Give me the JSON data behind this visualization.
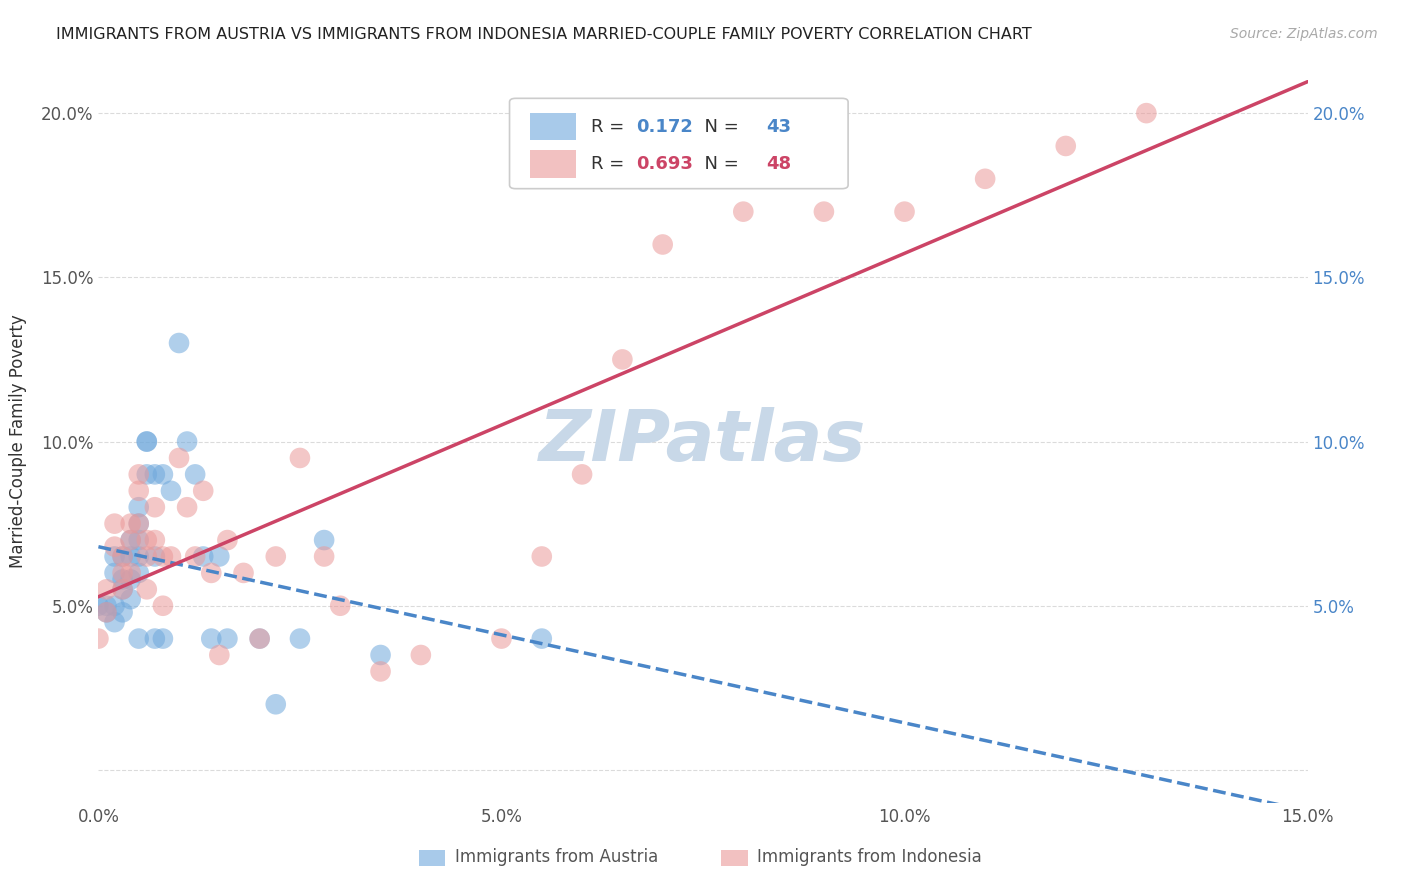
{
  "title": "IMMIGRANTS FROM AUSTRIA VS IMMIGRANTS FROM INDONESIA MARRIED-COUPLE FAMILY POVERTY CORRELATION CHART",
  "source": "Source: ZipAtlas.com",
  "ylabel": "Married-Couple Family Poverty",
  "xlim": [
    0,
    0.15
  ],
  "ylim": [
    -0.01,
    0.21
  ],
  "xticks": [
    0.0,
    0.025,
    0.05,
    0.075,
    0.1,
    0.125,
    0.15
  ],
  "xtick_labels": [
    "0.0%",
    "",
    "5.0%",
    "",
    "10.0%",
    "",
    "15.0%"
  ],
  "ytick_positions": [
    0.0,
    0.05,
    0.1,
    0.15,
    0.2
  ],
  "ytick_labels_left": [
    "",
    "5.0%",
    "10.0%",
    "15.0%",
    "20.0%"
  ],
  "ytick_labels_right": [
    "",
    "5.0%",
    "10.0%",
    "15.0%",
    "20.0%"
  ],
  "austria_R": 0.172,
  "austria_N": 43,
  "indonesia_R": 0.693,
  "indonesia_N": 48,
  "austria_color": "#6fa8dc",
  "indonesia_color": "#ea9999",
  "austria_line_color": "#4a86c8",
  "indonesia_line_color": "#cc4466",
  "watermark": "ZIPatlas",
  "watermark_color": "#c8d8e8",
  "austria_x": [
    0.0,
    0.001,
    0.001,
    0.002,
    0.002,
    0.002,
    0.002,
    0.003,
    0.003,
    0.003,
    0.003,
    0.004,
    0.004,
    0.004,
    0.004,
    0.005,
    0.005,
    0.005,
    0.005,
    0.005,
    0.005,
    0.006,
    0.006,
    0.006,
    0.007,
    0.007,
    0.007,
    0.008,
    0.008,
    0.009,
    0.01,
    0.011,
    0.012,
    0.013,
    0.014,
    0.015,
    0.016,
    0.02,
    0.022,
    0.025,
    0.028,
    0.035,
    0.055
  ],
  "austria_y": [
    0.05,
    0.048,
    0.05,
    0.065,
    0.06,
    0.05,
    0.045,
    0.065,
    0.058,
    0.055,
    0.048,
    0.07,
    0.065,
    0.058,
    0.052,
    0.08,
    0.075,
    0.07,
    0.065,
    0.06,
    0.04,
    0.1,
    0.1,
    0.09,
    0.09,
    0.065,
    0.04,
    0.09,
    0.04,
    0.085,
    0.13,
    0.1,
    0.09,
    0.065,
    0.04,
    0.065,
    0.04,
    0.04,
    0.02,
    0.04,
    0.07,
    0.035,
    0.04
  ],
  "indonesia_x": [
    0.0,
    0.001,
    0.001,
    0.002,
    0.002,
    0.003,
    0.003,
    0.003,
    0.004,
    0.004,
    0.004,
    0.005,
    0.005,
    0.005,
    0.006,
    0.006,
    0.006,
    0.007,
    0.007,
    0.008,
    0.008,
    0.009,
    0.01,
    0.011,
    0.012,
    0.013,
    0.014,
    0.015,
    0.016,
    0.018,
    0.02,
    0.022,
    0.025,
    0.028,
    0.03,
    0.035,
    0.04,
    0.05,
    0.055,
    0.06,
    0.065,
    0.07,
    0.08,
    0.09,
    0.1,
    0.11,
    0.12,
    0.13
  ],
  "indonesia_y": [
    0.04,
    0.055,
    0.048,
    0.075,
    0.068,
    0.065,
    0.06,
    0.055,
    0.075,
    0.07,
    0.06,
    0.09,
    0.085,
    0.075,
    0.07,
    0.065,
    0.055,
    0.08,
    0.07,
    0.065,
    0.05,
    0.065,
    0.095,
    0.08,
    0.065,
    0.085,
    0.06,
    0.035,
    0.07,
    0.06,
    0.04,
    0.065,
    0.095,
    0.065,
    0.05,
    0.03,
    0.035,
    0.04,
    0.065,
    0.09,
    0.125,
    0.16,
    0.17,
    0.17,
    0.17,
    0.18,
    0.19,
    0.2
  ]
}
